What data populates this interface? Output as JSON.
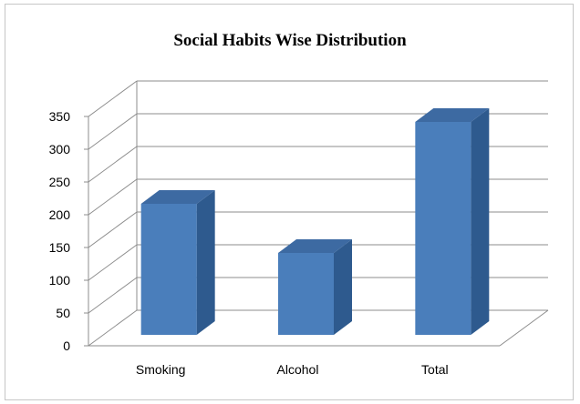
{
  "chart_data": {
    "type": "bar",
    "title": "Social Habits Wise Distribution",
    "categories": [
      "Smoking",
      "Alcohol",
      "Total"
    ],
    "values": [
      200,
      125,
      325
    ],
    "ylim": [
      0,
      350
    ],
    "yticks": [
      "0",
      "50",
      "100",
      "150",
      "200",
      "250",
      "300",
      "350"
    ],
    "xlabel": "",
    "ylabel": "",
    "grid": true,
    "legend": "none",
    "style": "3d-column",
    "colors": {
      "bar_front": "#4a7ebb",
      "bar_side": "#2e5a8e",
      "bar_top": "#3d6aa2",
      "gridline": "#8c8c8c"
    }
  }
}
